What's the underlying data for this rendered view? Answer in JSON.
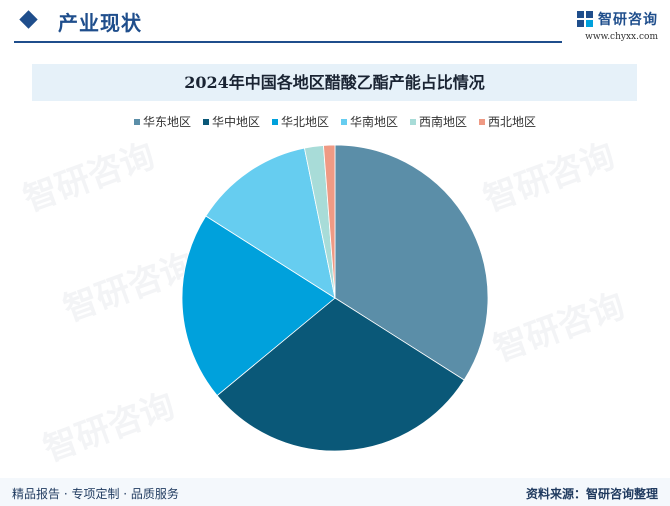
{
  "header": {
    "section_title": "产业现状",
    "brand_name": "智研咨询",
    "brand_url": "www.chyxx.com"
  },
  "chart_data": {
    "type": "pie",
    "title": "2024年中国各地区醋酸乙酯产能占比情况",
    "legend_position": "top",
    "categories": [
      "华东地区",
      "华中地区",
      "华北地区",
      "华南地区",
      "西南地区",
      "西北地区"
    ],
    "values": [
      34.0,
      30.0,
      20.0,
      12.8,
      2.0,
      1.2
    ],
    "colors": [
      "#5b8ea8",
      "#0a5878",
      "#00a1dc",
      "#66cdf0",
      "#a8dcd8",
      "#ef9a84"
    ]
  },
  "watermark": {
    "text": "智研咨询"
  },
  "footer": {
    "left_text": "精品报告 · 专项定制 · 品质服务",
    "source_text": "资料来源：智研咨询整理"
  }
}
